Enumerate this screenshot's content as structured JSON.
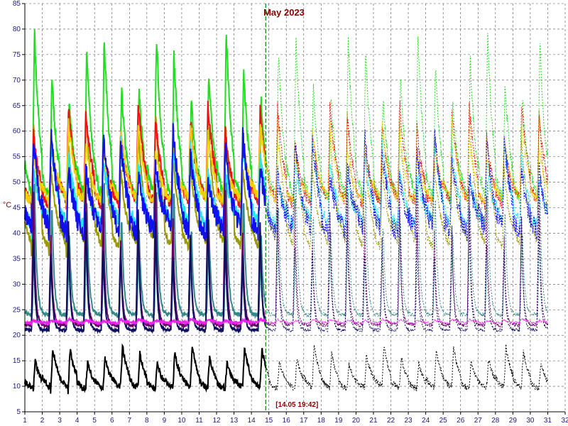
{
  "chart_data": {
    "type": "line",
    "title": "May 2023",
    "ylabel": "°C",
    "xlabel": "",
    "xlim": [
      1,
      32
    ],
    "ylim": [
      5,
      85
    ],
    "x_ticks": [
      1,
      2,
      3,
      4,
      5,
      6,
      7,
      8,
      9,
      10,
      11,
      12,
      13,
      14,
      15,
      16,
      17,
      18,
      19,
      20,
      21,
      22,
      23,
      24,
      25,
      26,
      27,
      28,
      29,
      30,
      31,
      32
    ],
    "y_ticks": [
      5,
      10,
      15,
      20,
      25,
      30,
      35,
      40,
      45,
      50,
      55,
      60,
      65,
      70,
      75,
      80,
      85
    ],
    "grid": true,
    "legend": "none",
    "marker": {
      "x": 14.82,
      "label": "[14.05 19:42]"
    },
    "colors": {
      "green": "#22dd22",
      "olive": "#999900",
      "red": "#ee1111",
      "yellow": "#f0d000",
      "blue": "#1010ee",
      "cyan": "#22e5f0",
      "purple": "#660066",
      "teal": "#338888",
      "navy": "#101060",
      "magenta": "#ee22ee",
      "black": "#000000",
      "marker": "#008800"
    },
    "series": [
      {
        "key": "green",
        "min": 45,
        "max": 80,
        "peak_offset": 0.55,
        "decay": 0.35,
        "noise": 1.2
      },
      {
        "key": "olive",
        "min": 35,
        "max": 64,
        "peak_offset": 0.5,
        "decay": 0.45,
        "noise": 0.8
      },
      {
        "key": "red",
        "min": 44,
        "max": 66,
        "peak_offset": 0.5,
        "decay": 0.45,
        "noise": 1.2
      },
      {
        "key": "yellow",
        "min": 45,
        "max": 62,
        "peak_offset": 0.5,
        "decay": 0.45,
        "noise": 1.0
      },
      {
        "key": "cyan",
        "min": 40,
        "max": 58,
        "peak_offset": 0.5,
        "decay": 0.5,
        "noise": 1.3
      },
      {
        "key": "blue",
        "min": 38,
        "max": 60,
        "peak_offset": 0.5,
        "decay": 0.5,
        "noise": 2.0
      },
      {
        "key": "teal",
        "min": 24,
        "max": 52,
        "peak_offset": 0.55,
        "decay": 0.12,
        "noise": 0.4
      },
      {
        "key": "purple",
        "min": 22,
        "max": 50,
        "peak_offset": 0.5,
        "decay": 0.1,
        "noise": 0.4
      },
      {
        "key": "navy",
        "min": 21,
        "max": 45,
        "peak_offset": 0.5,
        "decay": 0.1,
        "noise": 0.3
      },
      {
        "key": "magenta",
        "min": 22.3,
        "max": 23.2,
        "peak_offset": 0.5,
        "decay": 0.5,
        "noise": 0.2
      },
      {
        "key": "black",
        "min": 9,
        "max": 18,
        "peak_offset": 0.6,
        "decay": 0.4,
        "noise": 0.6
      }
    ]
  }
}
